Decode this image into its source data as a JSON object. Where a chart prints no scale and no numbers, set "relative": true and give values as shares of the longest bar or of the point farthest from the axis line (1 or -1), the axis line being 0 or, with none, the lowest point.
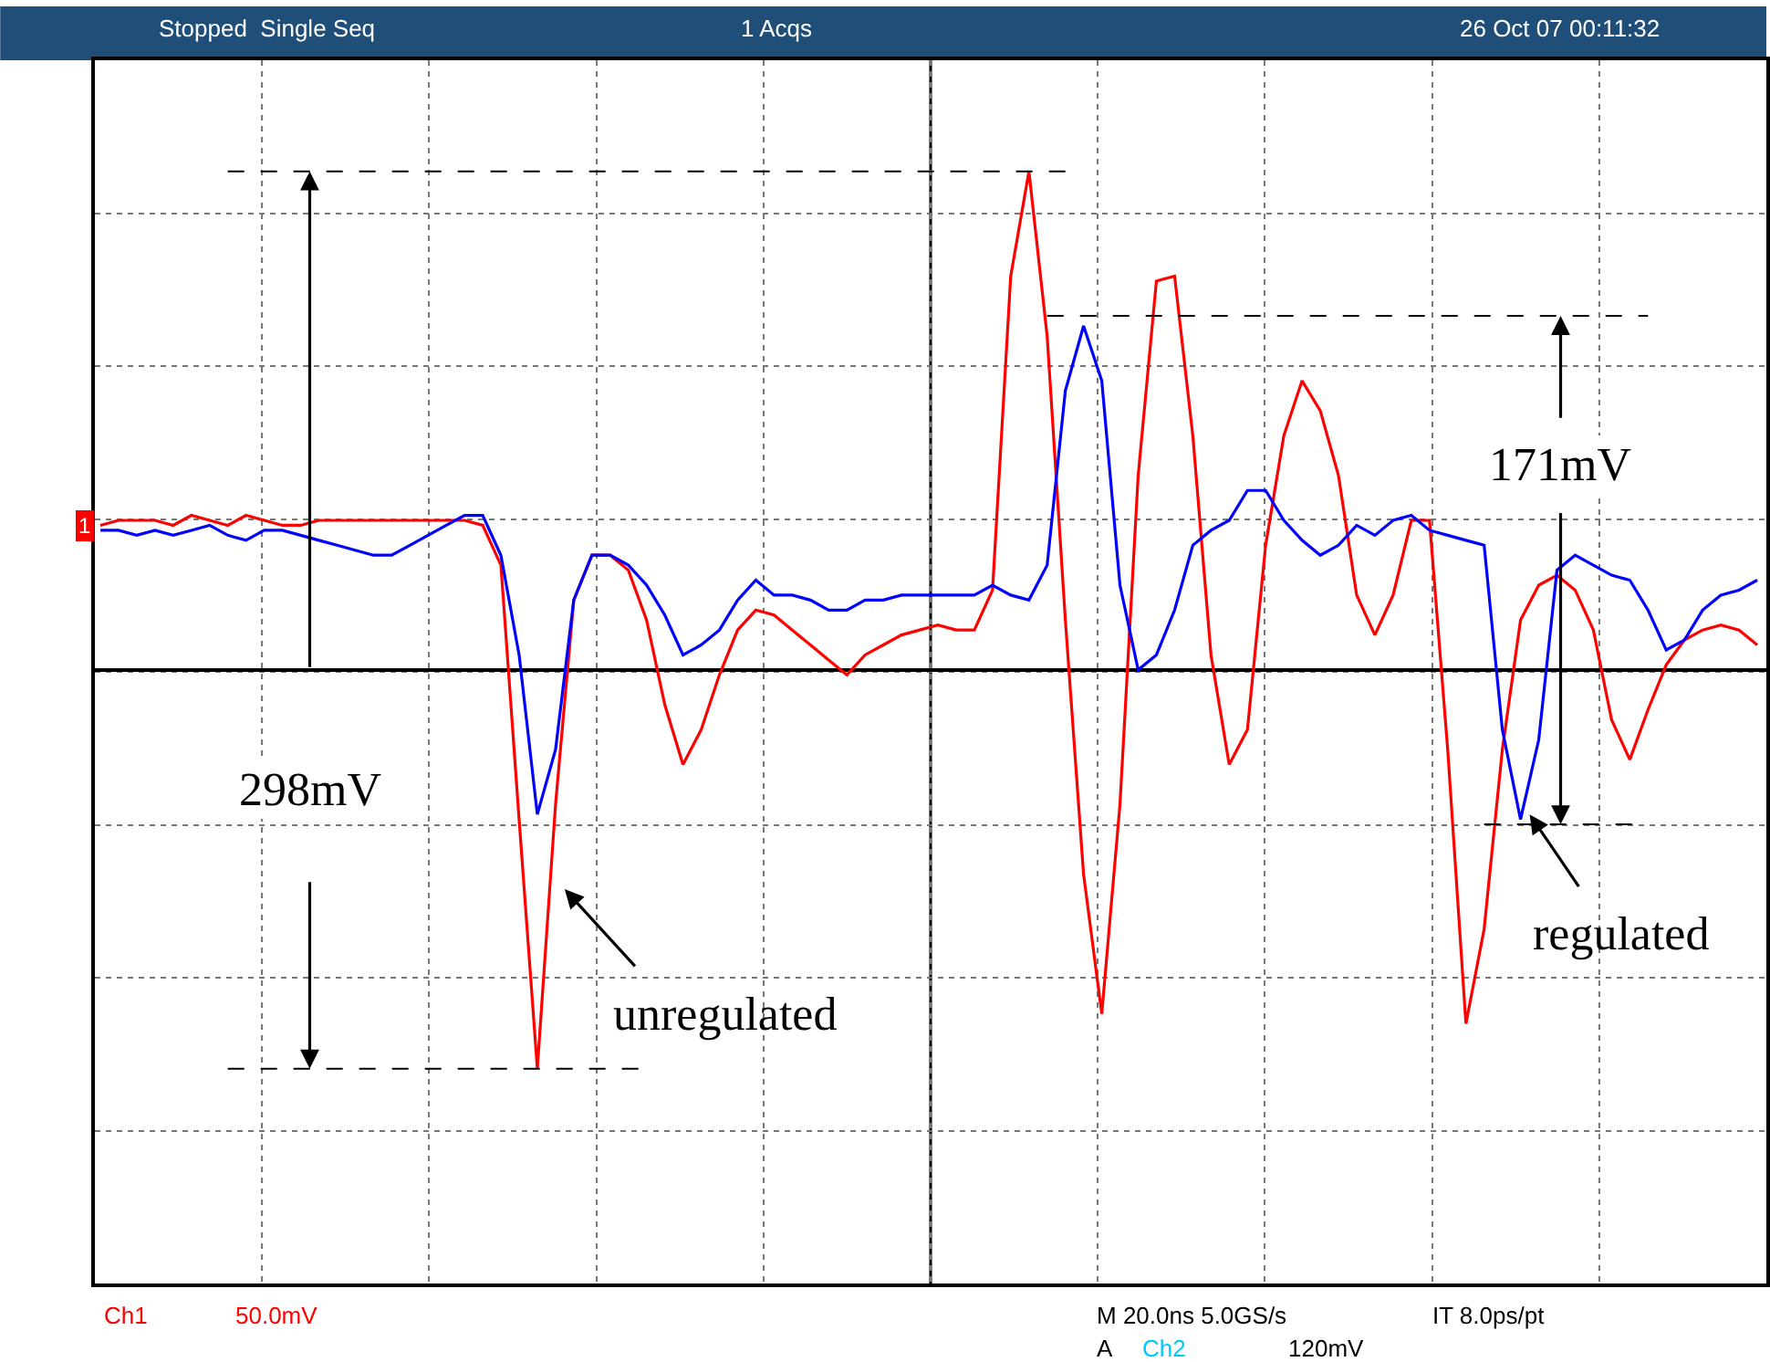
{
  "chart_data": {
    "type": "line",
    "relative": true,
    "grid": true,
    "line_style": "solid",
    "categories": [
      null,
      null,
      null,
      null,
      null,
      null,
      null,
      null,
      null,
      null,
      null,
      null,
      null,
      null,
      null,
      null,
      null,
      null,
      null,
      null,
      null,
      null,
      null,
      null,
      null,
      null,
      null,
      null,
      null,
      null,
      null,
      null,
      null,
      null,
      null,
      null,
      null,
      null,
      null,
      null,
      null,
      null,
      null,
      null,
      null,
      null,
      null,
      null,
      null,
      null,
      null,
      null,
      null,
      null,
      null,
      null,
      null,
      null,
      null,
      null,
      null,
      null,
      null,
      null,
      null,
      null,
      null,
      null,
      null,
      null,
      null,
      null,
      null,
      null,
      null,
      null,
      null,
      null,
      null,
      null,
      null,
      null,
      null,
      null,
      null,
      null,
      null,
      null,
      null,
      null,
      null,
      null
    ],
    "series": [
      {
        "color": "#ff0000",
        "values": [
          0.29,
          0.3,
          0.3,
          0.3,
          0.29,
          0.31,
          0.3,
          0.29,
          0.31,
          0.3,
          0.29,
          0.29,
          0.3,
          0.3,
          0.3,
          0.3,
          0.3,
          0.3,
          0.3,
          0.3,
          0.3,
          0.29,
          0.21,
          -0.3,
          -0.8,
          -0.27,
          0.14,
          0.23,
          0.23,
          0.2,
          0.1,
          -0.07,
          -0.19,
          -0.12,
          -0.01,
          0.08,
          0.12,
          0.11,
          0.08,
          0.05,
          0.02,
          -0.01,
          0.03,
          0.05,
          0.07,
          0.08,
          0.09,
          0.08,
          0.08,
          0.16,
          0.79,
          1.0,
          0.67,
          0.1,
          -0.41,
          -0.69,
          -0.27,
          0.39,
          0.78,
          0.79,
          0.47,
          0.03,
          -0.19,
          -0.12,
          0.25,
          0.47,
          0.58,
          0.52,
          0.39,
          0.15,
          0.07,
          0.15,
          0.3,
          0.3,
          -0.16,
          -0.71,
          -0.52,
          -0.16,
          0.1,
          0.17,
          0.19,
          0.16,
          0.08,
          -0.1,
          -0.18,
          -0.08,
          0.01,
          0.06,
          0.08,
          0.09,
          0.08,
          0.05
        ]
      },
      {
        "color": "#0000ff",
        "values": [
          0.28,
          0.28,
          0.27,
          0.28,
          0.27,
          0.28,
          0.29,
          0.27,
          0.26,
          0.28,
          0.28,
          0.27,
          0.26,
          0.25,
          0.24,
          0.23,
          0.23,
          0.25,
          0.27,
          0.29,
          0.31,
          0.31,
          0.23,
          0.03,
          -0.29,
          -0.16,
          0.14,
          0.23,
          0.23,
          0.21,
          0.17,
          0.11,
          0.03,
          0.05,
          0.08,
          0.14,
          0.18,
          0.15,
          0.15,
          0.14,
          0.12,
          0.12,
          0.14,
          0.14,
          0.15,
          0.15,
          0.15,
          0.15,
          0.15,
          0.17,
          0.15,
          0.14,
          0.21,
          0.56,
          0.69,
          0.58,
          0.17,
          0.0,
          0.03,
          0.12,
          0.25,
          0.28,
          0.3,
          0.36,
          0.36,
          0.3,
          0.26,
          0.23,
          0.25,
          0.29,
          0.27,
          0.3,
          0.31,
          0.28,
          0.27,
          0.26,
          0.25,
          -0.12,
          -0.3,
          -0.14,
          0.2,
          0.23,
          0.21,
          0.19,
          0.18,
          0.12,
          0.04,
          0.06,
          0.12,
          0.15,
          0.16,
          0.18
        ]
      },
      {
        "color": "#000000",
        "line_style": "dashed",
        "values": [
          null,
          null,
          null,
          null,
          null,
          null,
          null,
          1.0,
          1.0,
          1.0,
          1.0,
          1.0,
          1.0,
          1.0,
          1.0,
          1.0,
          1.0,
          1.0,
          1.0,
          1.0,
          1.0,
          1.0,
          1.0,
          1.0,
          1.0,
          1.0,
          1.0,
          1.0,
          1.0,
          1.0,
          1.0,
          1.0,
          1.0,
          1.0,
          1.0,
          1.0,
          1.0,
          1.0,
          1.0,
          1.0,
          1.0,
          1.0,
          1.0,
          1.0,
          1.0,
          1.0,
          1.0,
          1.0,
          1.0,
          1.0,
          1.0,
          1.0,
          1.0,
          1.0,
          null,
          null,
          null,
          null,
          null,
          null,
          null,
          null,
          null,
          null,
          null,
          null,
          null,
          null,
          null,
          null,
          null,
          null,
          null,
          null,
          null,
          null,
          null,
          null,
          null,
          null,
          null,
          null,
          null,
          null,
          null,
          null,
          null,
          null,
          null,
          null,
          null,
          null
        ]
      },
      {
        "color": "#000000",
        "line_style": "dashed",
        "values": [
          null,
          null,
          null,
          null,
          null,
          null,
          null,
          -0.8,
          -0.8,
          -0.8,
          -0.8,
          -0.8,
          -0.8,
          -0.8,
          -0.8,
          -0.8,
          -0.8,
          -0.8,
          -0.8,
          -0.8,
          -0.8,
          -0.8,
          -0.8,
          -0.8,
          -0.8,
          -0.8,
          -0.8,
          -0.8,
          -0.8,
          -0.8,
          -0.8,
          null,
          null,
          null,
          null,
          null,
          null,
          null,
          null,
          null,
          null,
          null,
          null,
          null,
          null,
          null,
          null,
          null,
          null,
          null,
          null,
          null,
          null,
          null,
          null,
          null,
          null,
          null,
          null,
          null,
          null,
          null,
          null,
          null,
          null,
          null,
          null,
          null,
          null,
          null,
          null,
          null,
          null,
          null,
          null,
          null,
          null,
          null,
          null,
          null,
          null,
          null,
          null,
          null,
          null,
          null,
          null,
          null,
          null,
          null,
          null,
          null
        ]
      },
      {
        "color": "#000000",
        "line_style": "dashed",
        "values": [
          null,
          null,
          null,
          null,
          null,
          null,
          null,
          null,
          null,
          null,
          null,
          null,
          null,
          null,
          null,
          null,
          null,
          null,
          null,
          null,
          null,
          null,
          null,
          null,
          null,
          null,
          null,
          null,
          null,
          null,
          null,
          null,
          null,
          null,
          null,
          null,
          null,
          null,
          null,
          null,
          null,
          null,
          null,
          null,
          null,
          null,
          null,
          null,
          null,
          null,
          null,
          null,
          0.71,
          0.71,
          0.71,
          0.71,
          0.71,
          0.71,
          0.71,
          0.71,
          0.71,
          0.71,
          0.71,
          0.71,
          0.71,
          0.71,
          0.71,
          0.71,
          0.71,
          0.71,
          0.71,
          0.71,
          0.71,
          0.71,
          0.71,
          0.71,
          0.71,
          0.71,
          0.71,
          0.71,
          0.71,
          0.71,
          0.71,
          0.71,
          0.71,
          0.71,
          null,
          null,
          null,
          null,
          null,
          null
        ]
      },
      {
        "color": "#000000",
        "line_style": "dashed",
        "values": [
          null,
          null,
          null,
          null,
          null,
          null,
          null,
          null,
          null,
          null,
          null,
          null,
          null,
          null,
          null,
          null,
          null,
          null,
          null,
          null,
          null,
          null,
          null,
          null,
          null,
          null,
          null,
          null,
          null,
          null,
          null,
          null,
          null,
          null,
          null,
          null,
          null,
          null,
          null,
          null,
          null,
          null,
          null,
          null,
          null,
          null,
          null,
          null,
          null,
          null,
          null,
          null,
          null,
          null,
          null,
          null,
          null,
          null,
          null,
          null,
          null,
          null,
          null,
          null,
          null,
          null,
          null,
          null,
          null,
          null,
          null,
          null,
          null,
          null,
          null,
          null,
          -0.31,
          -0.31,
          -0.31,
          -0.31,
          -0.31,
          -0.31,
          -0.31,
          -0.31,
          -0.31,
          -0.31,
          null,
          null,
          null,
          null,
          null,
          null
        ]
      }
    ],
    "annotations": [
      "Stopped  Single Seq",
      "1 Acqs",
      "26 Oct 07 00:11:32",
      "Ch1",
      "50.0mV",
      "M 20.0ns 5.0GS/s",
      "IT 8.0ps/pt",
      "A",
      "Ch2",
      "120mV",
      "298mV",
      "171mV",
      "unregulated",
      "regulated",
      "1"
    ]
  }
}
